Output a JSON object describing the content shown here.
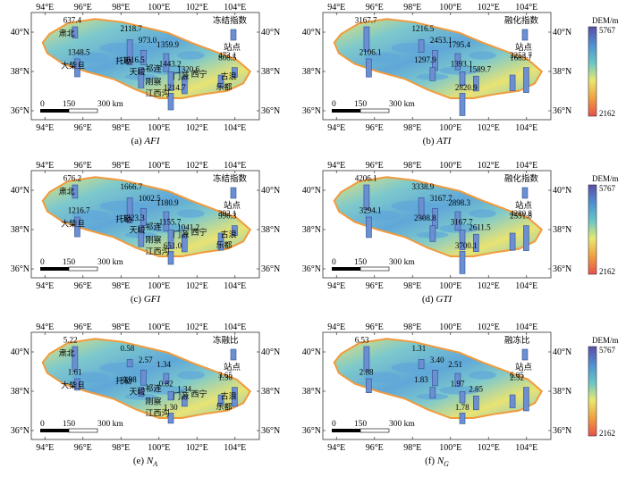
{
  "axes": {
    "lon_ticks": [
      "94°E",
      "96°E",
      "98°E",
      "100°E",
      "102°E",
      "104°E"
    ],
    "lat_ticks": [
      "40°N",
      "38°N",
      "36°N"
    ]
  },
  "scalebar": {
    "labels": [
      "0",
      "150",
      "300 km"
    ]
  },
  "legend_label": "站点",
  "colorbar": {
    "title": "DEM/m",
    "max": "5767",
    "min": "2162",
    "colors": [
      "#5b4ea8",
      "#4f8fd0",
      "#66c6c8",
      "#e8e870",
      "#f0a040",
      "#e8504a"
    ]
  },
  "colors": {
    "bar": "#6b8fd0",
    "bar_edge": "#2e4f93",
    "land_hi": "#5fa7d8",
    "land_mid": "#7ec9cc",
    "land_low": "#e9e373",
    "land_edge": "#f29a3c"
  },
  "panels": [
    {
      "caption_prefix": "(a) ",
      "caption_var": "AFI",
      "legend_title": "冻结指数",
      "values": [
        "637.4",
        "1348.5",
        "2118.7",
        "973.0",
        "1359.9",
        "1616.5",
        "1443.2",
        "1320.6",
        "808.5",
        "1214.7",
        "473.1"
      ],
      "stations": [
        "肃北",
        "大柴旦",
        "托勒",
        "祁连",
        "刚察",
        "天峻",
        "门源",
        "西宁",
        "乐都",
        "江西沟",
        "古浪"
      ]
    },
    {
      "caption_prefix": "(b) ",
      "caption_var": "ATI",
      "legend_title": "融化指数",
      "values": [
        "3167.7",
        "2106.1",
        "1216.5",
        "2453.1",
        "1795.4",
        "1297.9",
        "1393.1",
        "1589.7",
        "1685.7",
        "2820.9",
        "3253.7"
      ],
      "stations": []
    },
    {
      "caption_prefix": "(c) ",
      "caption_var": "GFI",
      "legend_title": "冻结指数",
      "values": [
        "676.2",
        "1216.7",
        "1666.7",
        "1002.5",
        "1180.9",
        "1323.3",
        "1155.7",
        "1041.2",
        "990.3",
        "651.0",
        "392.1"
      ],
      "stations": [
        "肃北",
        "大柴旦",
        "托勒",
        "祁连",
        "刚察",
        "天峻",
        "门源",
        "西宁",
        "乐都",
        "江西沟",
        "古浪"
      ]
    },
    {
      "caption_prefix": "(d) ",
      "caption_var": "GTI",
      "legend_title": "融化指数",
      "values": [
        "4206.1",
        "3294.1",
        "3338.9",
        "3167.7",
        "2898.3",
        "2308.8",
        "3167.7",
        "2611.5",
        "2551.8",
        "3700.1",
        "4280.8"
      ],
      "stations": []
    },
    {
      "caption_prefix": "(e) ",
      "caption_var": "N",
      "caption_sub": "A",
      "legend_title": "冻融比",
      "values": [
        "5.22",
        "1.61",
        "0.58",
        "2.57",
        "1.34",
        "0.98",
        "0.82",
        "1.34",
        "1.30",
        "1.30",
        "3.65"
      ],
      "stations": [
        "肃北",
        "大柴旦",
        "托勒",
        "祁连",
        "刚察",
        "天峻",
        "门源",
        "西宁",
        "乐都",
        "江西沟",
        "古浪"
      ]
    },
    {
      "caption_prefix": "(f) ",
      "caption_var": "N",
      "caption_sub": "G",
      "legend_title": "融冻比",
      "values": [
        "6.53",
        "2.88",
        "1.31",
        "3.40",
        "2.51",
        "1.83",
        "1.97",
        "2.85",
        "2.52",
        "1.78",
        "6.05"
      ],
      "stations": []
    }
  ]
}
